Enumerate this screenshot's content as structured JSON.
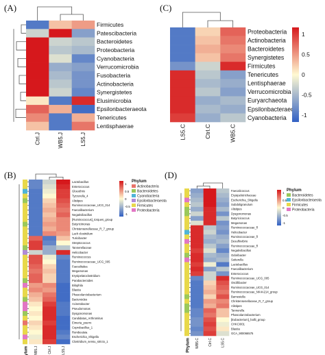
{
  "panels": [
    {
      "letter": "(A)",
      "col_labels": [
        "Ctrl.J",
        "WB5.J",
        "LS5.J"
      ],
      "row_labels": [
        "Firmicutes",
        "Patescibacteria",
        "Bacteroidetes",
        "Proteobacteria",
        "Cyanobacteria",
        "Verrucomicrobia",
        "Fusobacteria",
        "Actinobacteria",
        "Synergistetes",
        "Elusimicrobia",
        "Epsilonbacteraeota",
        "Tenericutes",
        "Lentisphaerae"
      ],
      "values": [
        [
          -1.0,
          0.3,
          0.5
        ],
        [
          -0.3,
          1.2,
          -0.7
        ],
        [
          1.3,
          -0.3,
          -0.4
        ],
        [
          1.3,
          -0.4,
          -0.5
        ],
        [
          1.3,
          -0.2,
          -0.9
        ],
        [
          1.2,
          -0.6,
          -0.7
        ],
        [
          1.2,
          -0.5,
          -0.8
        ],
        [
          1.2,
          -0.4,
          -0.8
        ],
        [
          1.2,
          -0.3,
          -0.9
        ],
        [
          0.1,
          -1.0,
          1.1
        ],
        [
          0.8,
          0.4,
          -1.1
        ],
        [
          0.6,
          -1.0,
          0.4
        ],
        [
          0.3,
          -1.0,
          0.7
        ]
      ]
    },
    {
      "letter": "(C)",
      "col_labels": [
        "LS5.C",
        "Ctrl.C",
        "WB5.C"
      ],
      "row_labels": [
        "Proteobacteria",
        "Actinobacteria",
        "Bacteroidetes",
        "Synergistetes",
        "Firmicutes",
        "Tenericutes",
        "Lentisphaerae",
        "Verrucomicrobia",
        "Euryarchaeota",
        "Epsilonbacteraeota",
        "Cyanobacteria"
      ],
      "values": [
        [
          -1.0,
          0.2,
          0.8
        ],
        [
          -1.0,
          0.3,
          0.7
        ],
        [
          -1.0,
          0.4,
          0.6
        ],
        [
          -1.0,
          0.3,
          0.7
        ],
        [
          -0.8,
          -0.3,
          1.1
        ],
        [
          1.1,
          -0.4,
          -0.7
        ],
        [
          1.1,
          -0.5,
          -0.6
        ],
        [
          1.1,
          -0.4,
          -0.7
        ],
        [
          1.1,
          -0.6,
          -0.5
        ],
        [
          1.1,
          -0.5,
          -0.6
        ],
        [
          1.0,
          -0.6,
          -0.4
        ]
      ],
      "legend_ticks": [
        "1",
        "0.5",
        "0",
        "-0.5",
        "-1"
      ]
    },
    {
      "letter": "(B)",
      "col_labels": [
        "WB5.J",
        "Ctrl.J",
        "LS5.J"
      ],
      "row_labels": [
        "Lactobacillus",
        "Enterococcus",
        "Gloeothrix",
        "Tyzzerella_4",
        "Alistipes",
        "Ruminococcaceae_UCG_014",
        "Faecalibacterium",
        "Negativibacillus",
        "[Ruminococcus]_torques_group",
        "Butyricimonas",
        "Christensenellaceae_R_7_group",
        "Lach clostridium",
        "Turicibacter",
        "Streptococcus",
        "Tannerellaceae",
        "Helicobacter",
        "Ruminococcus",
        "Ruminococcaceae_UCG_005",
        "Faecalitalea",
        "Megamonas",
        "Erysipelatoclostridium",
        "Parabacteroides",
        "Bilophila",
        "Blautia",
        "Phascolarctobacterium",
        "Bacteroides",
        "Acinetobacter",
        "Pseudomonas",
        "Dysgonomonas",
        "Candidatus_Arthromitus",
        "Eimeria_poerrx",
        "Coprobacillus_1",
        "Romboutsia",
        "Escherichia_Shigella",
        "Clostridium_sensu_stricto_1"
      ],
      "phylum_label": "Phylum",
      "legend_title": "Phylum",
      "legend_items": [
        "Actinobacteria",
        "Bacteroidetes",
        "Cyanobacteria",
        "Epsilonbacteraeota",
        "Firmicutes",
        "Proteobacteria"
      ],
      "legend_colors": [
        "#e8736a",
        "#9bc85a",
        "#4fb5d8",
        "#b08bd8",
        "#e8d84a",
        "#e277c4"
      ],
      "scale_ticks": [
        "1",
        "0.5",
        "0",
        "-0.5",
        "-1"
      ],
      "phylum_index": [
        4,
        4,
        2,
        4,
        1,
        4,
        4,
        4,
        4,
        1,
        4,
        4,
        4,
        4,
        1,
        3,
        4,
        4,
        4,
        4,
        4,
        1,
        5,
        4,
        4,
        1,
        5,
        5,
        1,
        4,
        0,
        4,
        4,
        5,
        4
      ],
      "values": [
        [
          -0.9,
          -0.3,
          1.2
        ],
        [
          -0.9,
          -0.2,
          1.1
        ],
        [
          -1.0,
          -0.1,
          1.0
        ],
        [
          -1.0,
          0.0,
          1.0
        ],
        [
          -1.0,
          0.2,
          0.9
        ],
        [
          -1.0,
          0.3,
          0.8
        ],
        [
          -1.0,
          0.4,
          0.7
        ],
        [
          -1.0,
          0.3,
          0.8
        ],
        [
          -1.0,
          0.4,
          0.6
        ],
        [
          -1.0,
          0.5,
          0.6
        ],
        [
          -1.0,
          0.4,
          0.6
        ],
        [
          -1.0,
          0.6,
          0.5
        ],
        [
          0.8,
          -1.0,
          0.3
        ],
        [
          1.0,
          -0.9,
          0.0
        ],
        [
          1.0,
          -0.6,
          -0.4
        ],
        [
          -0.3,
          -0.6,
          1.1
        ],
        [
          0.9,
          -0.1,
          -0.9
        ],
        [
          0.9,
          0.0,
          -1.0
        ],
        [
          0.8,
          0.2,
          -1.0
        ],
        [
          0.7,
          0.3,
          -1.0
        ],
        [
          0.8,
          0.2,
          -1.0
        ],
        [
          0.8,
          0.2,
          -1.0
        ],
        [
          0.5,
          0.6,
          -1.1
        ],
        [
          0.6,
          0.5,
          -1.1
        ],
        [
          0.4,
          0.7,
          -1.1
        ],
        [
          0.3,
          0.8,
          -1.1
        ],
        [
          0.1,
          1.0,
          -1.0
        ],
        [
          0.0,
          1.1,
          -1.0
        ],
        [
          0.1,
          1.1,
          -1.0
        ],
        [
          0.0,
          1.1,
          -1.1
        ],
        [
          0.2,
          1.0,
          -1.1
        ],
        [
          0.1,
          1.1,
          -1.1
        ],
        [
          0.0,
          1.1,
          -1.0
        ],
        [
          -0.1,
          1.1,
          -0.9
        ],
        [
          0.1,
          1.0,
          -1.1
        ]
      ]
    },
    {
      "letter": "(D)",
      "col_labels": [
        "WB5.C",
        "Ctrl.C",
        "LS5.C"
      ],
      "row_labels": [
        "Faecalicoccus",
        "Erysipelotrichaceae",
        "Escherichia_Shigella",
        "Subdoligranulum",
        "Alistipes",
        "Dysgonomonas",
        "Butyricicoccus",
        "Megamonas",
        "Ruminococcaceae_fl",
        "Helicobacter",
        "Ruminococcaceae_fl",
        "Desulfovibrio",
        "Ruminococcaceae_fl",
        "Negativibacillus",
        "Odoribacter",
        "Sutterella",
        "Lactobacillus",
        "Faecalibacterium",
        "Enterococcus",
        "Ruminococcaceae_UCG_005",
        "Oscillibacter",
        "Ruminococcaceae_UCG_014",
        "Ruminococcaceae_NK4A214_group",
        "Barnesiella",
        "Christensenellaceae_R_7_group",
        "Alistipes",
        "Tannerella",
        "Phascolarctobacterium",
        "[Eubacterium]_hallii_group",
        "CHKCI001",
        "Blautia",
        "GCA_900066575"
      ],
      "phylum_label": "Phylum",
      "legend_title": "Phylum",
      "legend_items": [
        "Bacteroidetes",
        "Epsilonbacteraeota",
        "Firmicutes",
        "Proteobacteria"
      ],
      "legend_colors": [
        "#9bc85a",
        "#4fb5d8",
        "#e8d84a",
        "#e277c4"
      ],
      "scale_ticks": [
        "1",
        "0.5",
        "0",
        "-0.5",
        "-1"
      ],
      "phylum_index": [
        2,
        2,
        3,
        2,
        0,
        0,
        2,
        2,
        2,
        1,
        2,
        3,
        2,
        2,
        0,
        3,
        2,
        2,
        2,
        2,
        2,
        2,
        2,
        0,
        2,
        0,
        0,
        2,
        2,
        2,
        2,
        2
      ],
      "values": [
        [
          -0.7,
          1.2,
          -0.4
        ],
        [
          -0.6,
          1.2,
          -0.5
        ],
        [
          -0.5,
          1.2,
          -0.6
        ],
        [
          -0.4,
          1.2,
          -0.7
        ],
        [
          -0.6,
          1.1,
          -0.5
        ],
        [
          -0.3,
          1.1,
          -0.8
        ],
        [
          -0.7,
          1.1,
          -0.4
        ],
        [
          -0.2,
          1.1,
          -0.8
        ],
        [
          1.1,
          -0.4,
          -0.7
        ],
        [
          1.1,
          -0.3,
          -0.8
        ],
        [
          1.1,
          -0.5,
          -0.6
        ],
        [
          1.1,
          -0.6,
          -0.5
        ],
        [
          1.1,
          -0.4,
          -0.7
        ],
        [
          1.0,
          -0.2,
          -0.9
        ],
        [
          1.1,
          -0.5,
          -0.6
        ],
        [
          1.1,
          -0.6,
          -0.5
        ],
        [
          1.0,
          -0.1,
          -1.0
        ],
        [
          1.1,
          -0.7,
          -0.4
        ],
        [
          1.0,
          -0.3,
          -0.8
        ],
        [
          -0.9,
          -0.3,
          1.1
        ],
        [
          -1.0,
          0.2,
          0.9
        ],
        [
          -1.0,
          0.3,
          0.8
        ],
        [
          -1.0,
          0.4,
          0.7
        ],
        [
          -1.0,
          0.2,
          0.9
        ],
        [
          -1.0,
          0.5,
          0.6
        ],
        [
          -1.0,
          0.4,
          0.7
        ],
        [
          -0.9,
          0.8,
          0.3
        ],
        [
          -0.9,
          0.7,
          0.3
        ],
        [
          -0.8,
          0.9,
          0.0
        ],
        [
          -0.8,
          1.0,
          -0.1
        ],
        [
          -0.9,
          0.9,
          0.1
        ],
        [
          -0.8,
          1.0,
          -0.2
        ]
      ]
    }
  ]
}
